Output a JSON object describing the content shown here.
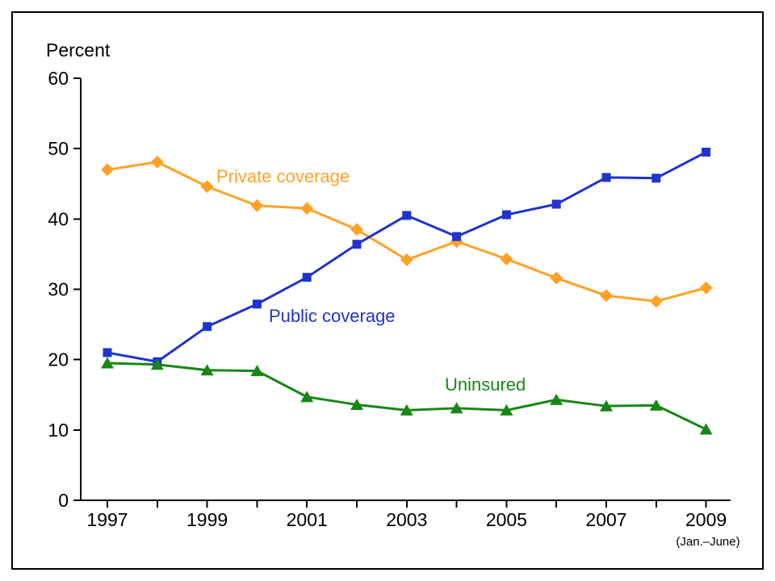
{
  "chart_data": {
    "type": "line",
    "title": "",
    "y_axis_title": "Percent",
    "x_axis_note": "(Jan.–June)",
    "ylim": [
      0,
      60
    ],
    "y_ticks": [
      0,
      10,
      20,
      30,
      40,
      50,
      60
    ],
    "years": [
      1997,
      1998,
      1999,
      2000,
      2001,
      2002,
      2003,
      2004,
      2005,
      2006,
      2007,
      2008,
      2009
    ],
    "x_tick_labels": [
      "1997",
      "1999",
      "2001",
      "2003",
      "2005",
      "2007",
      "2009"
    ],
    "grid": false,
    "legend": "inline-annotations",
    "axis_color": "#000000",
    "series": [
      {
        "name": "Private coverage",
        "color": "#FFA226",
        "marker": "diamond",
        "values": [
          47.0,
          48.1,
          44.6,
          41.9,
          41.5,
          38.5,
          34.2,
          36.8,
          34.3,
          31.6,
          29.1,
          28.3,
          30.2
        ]
      },
      {
        "name": "Public coverage",
        "color": "#2033CC",
        "marker": "square",
        "values": [
          21.0,
          19.7,
          24.7,
          27.9,
          31.7,
          36.4,
          40.5,
          37.5,
          40.6,
          42.1,
          45.9,
          45.8,
          49.5
        ]
      },
      {
        "name": "Uninsured",
        "color": "#178717",
        "marker": "triangle-up",
        "values": [
          19.5,
          19.3,
          18.5,
          18.4,
          14.7,
          13.6,
          12.8,
          13.1,
          12.8,
          14.3,
          13.4,
          13.5,
          10.1
        ]
      }
    ]
  }
}
